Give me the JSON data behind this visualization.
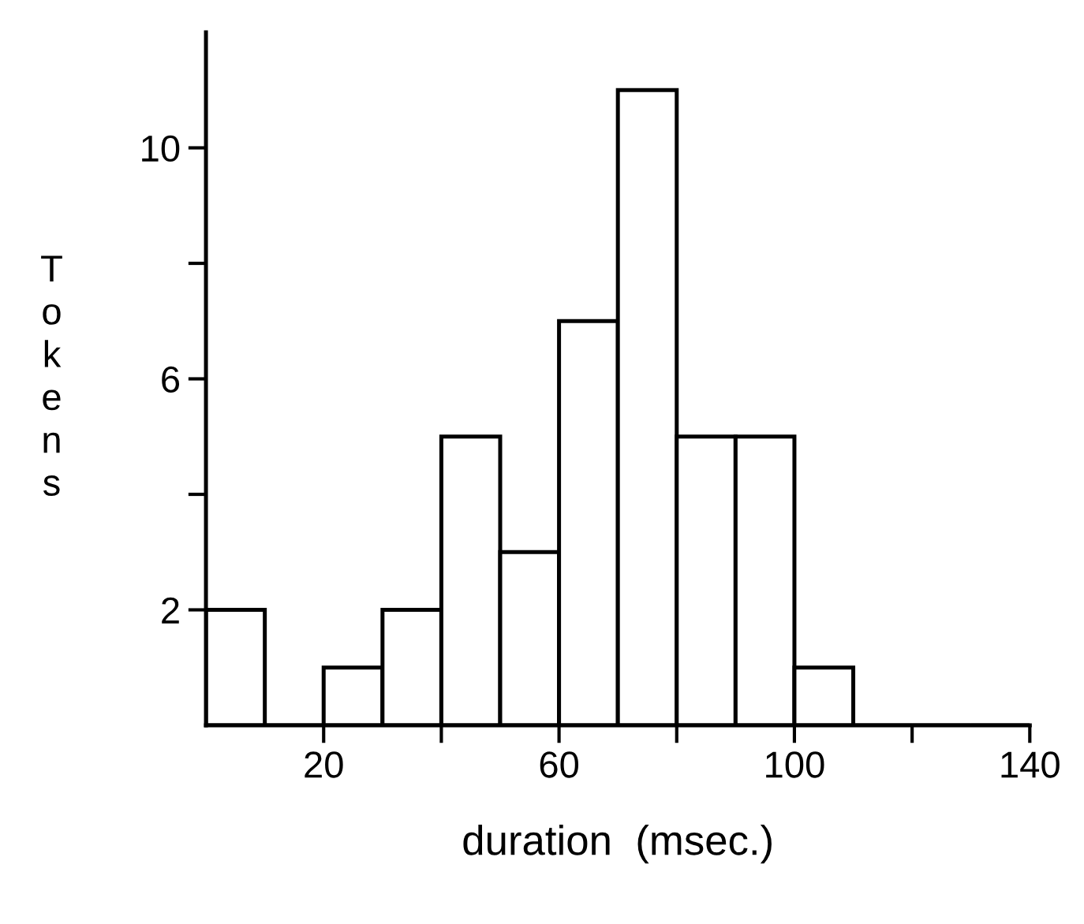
{
  "chart_data": {
    "type": "histogram",
    "xlabel": "duration  (msec.)",
    "ylabel": "Tokens",
    "bins": [
      0,
      10,
      20,
      30,
      40,
      50,
      60,
      70,
      80,
      90,
      100,
      110,
      120,
      130,
      140
    ],
    "values": [
      2,
      0,
      1,
      2,
      5,
      3,
      7,
      11,
      5,
      5,
      1,
      0,
      0,
      0
    ],
    "color": "#ffffff",
    "xlim": [
      0,
      140
    ],
    "ylim": [
      0,
      12
    ],
    "xticks": [
      20,
      {
        "value": 40,
        "label": null
      },
      60,
      {
        "value": 80,
        "label": null
      },
      100,
      {
        "value": 120,
        "label": null
      },
      140
    ],
    "yticks": [
      2,
      {
        "value": 4,
        "label": null
      },
      6,
      {
        "value": 8,
        "label": null
      },
      10
    ],
    "grid": false,
    "legend": false
  }
}
